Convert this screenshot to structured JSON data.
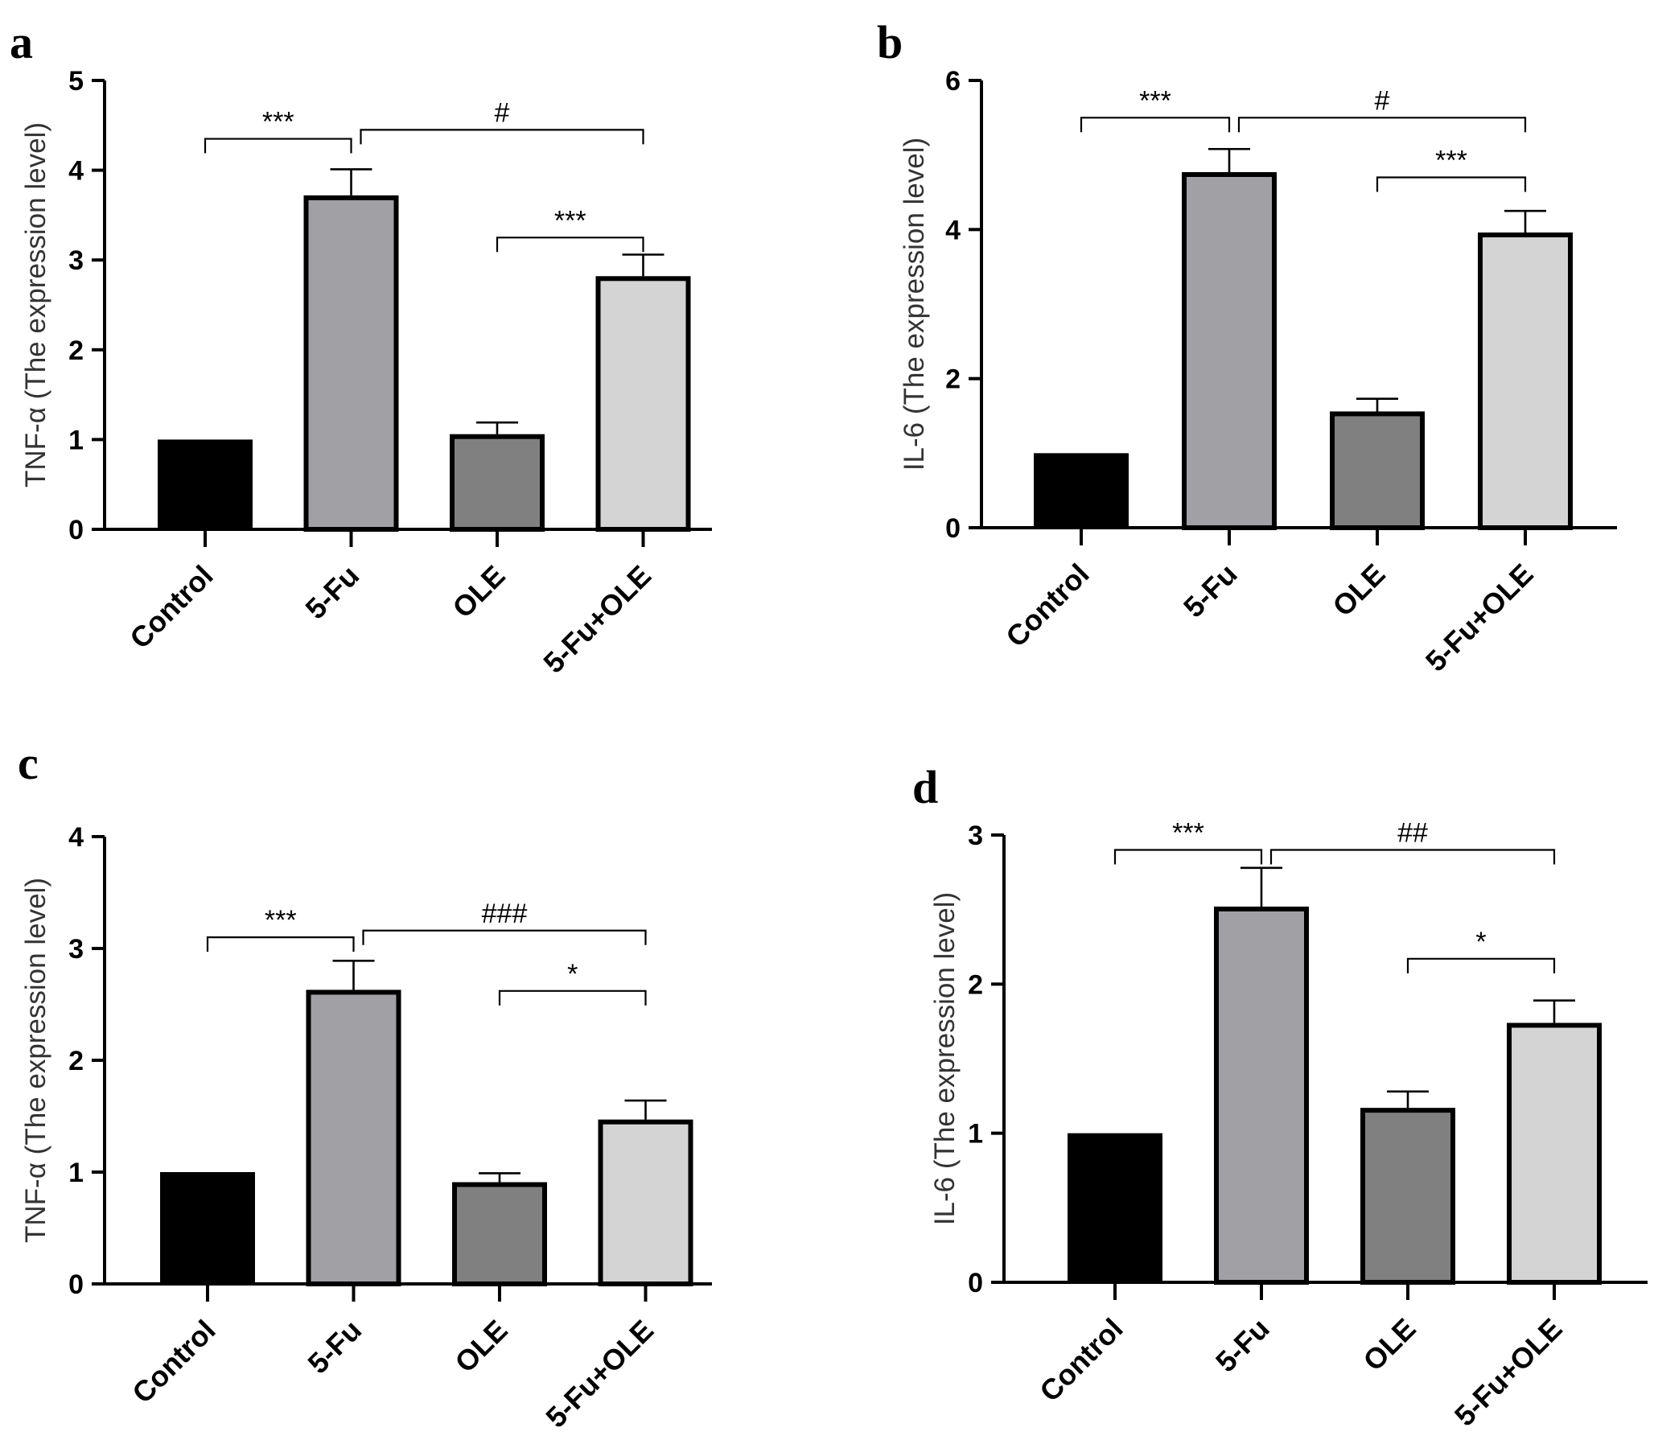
{
  "chart_data": [
    {
      "panel": "a",
      "type": "bar",
      "ylabel": "TNF-α (The expression level)",
      "ylim": [
        0,
        5
      ],
      "yticks": [
        0,
        1,
        2,
        3,
        4,
        5
      ],
      "categories": [
        "Control",
        "5-Fu",
        "OLE",
        "5-Fu+OLE"
      ],
      "values": [
        1.0,
        3.72,
        1.06,
        2.82
      ],
      "errors": [
        0,
        0.29,
        0.13,
        0.24
      ],
      "colors": [
        "#000000",
        "#a0a0a5",
        "#808080",
        "#d4d4d4"
      ],
      "significance": [
        {
          "from": 0,
          "to": 1,
          "label": "***",
          "y": 4.35
        },
        {
          "from": 1,
          "to": 3,
          "label": "#",
          "y": 4.45
        },
        {
          "from": 2,
          "to": 3,
          "label": "***",
          "y": 3.25
        }
      ]
    },
    {
      "panel": "b",
      "type": "bar",
      "ylabel": "IL-6 (The expression level)",
      "ylim": [
        0,
        6
      ],
      "yticks": [
        0,
        2,
        4,
        6
      ],
      "categories": [
        "Control",
        "5-Fu",
        "OLE",
        "5-Fu+OLE"
      ],
      "values": [
        1.0,
        4.77,
        1.56,
        3.96
      ],
      "errors": [
        0,
        0.31,
        0.17,
        0.29
      ],
      "colors": [
        "#000000",
        "#a0a0a5",
        "#808080",
        "#d4d4d4"
      ],
      "significance": [
        {
          "from": 0,
          "to": 1,
          "label": "***",
          "y": 5.5
        },
        {
          "from": 1,
          "to": 3,
          "label": "#",
          "y": 5.5
        },
        {
          "from": 2,
          "to": 3,
          "label": "***",
          "y": 4.7
        }
      ]
    },
    {
      "panel": "c",
      "type": "bar",
      "ylabel": "TNF-α (The expression level)",
      "ylim": [
        0,
        4
      ],
      "yticks": [
        0,
        1,
        2,
        3,
        4
      ],
      "categories": [
        "Control",
        "5-Fu",
        "OLE",
        "5-Fu+OLE"
      ],
      "values": [
        1.0,
        2.63,
        0.91,
        1.47
      ],
      "errors": [
        0,
        0.26,
        0.08,
        0.17
      ],
      "colors": [
        "#000000",
        "#a0a0a5",
        "#808080",
        "#d4d4d4"
      ],
      "significance": [
        {
          "from": 0,
          "to": 1,
          "label": "***",
          "y": 3.1
        },
        {
          "from": 1,
          "to": 3,
          "label": "###",
          "y": 3.16
        },
        {
          "from": 2,
          "to": 3,
          "label": "*",
          "y": 2.62
        }
      ]
    },
    {
      "panel": "d",
      "type": "bar",
      "ylabel": "IL-6 (The expression level)",
      "ylim": [
        0,
        3
      ],
      "yticks": [
        0,
        1,
        2,
        3
      ],
      "categories": [
        "Control",
        "5-Fu",
        "OLE",
        "5-Fu+OLE"
      ],
      "values": [
        1.0,
        2.52,
        1.17,
        1.74
      ],
      "errors": [
        0,
        0.26,
        0.11,
        0.15
      ],
      "colors": [
        "#000000",
        "#a0a0a5",
        "#808080",
        "#d4d4d4"
      ],
      "significance": [
        {
          "from": 0,
          "to": 1,
          "label": "***",
          "y": 2.9
        },
        {
          "from": 1,
          "to": 3,
          "label": "##",
          "y": 2.9
        },
        {
          "from": 2,
          "to": 3,
          "label": "*",
          "y": 2.17
        }
      ]
    }
  ]
}
